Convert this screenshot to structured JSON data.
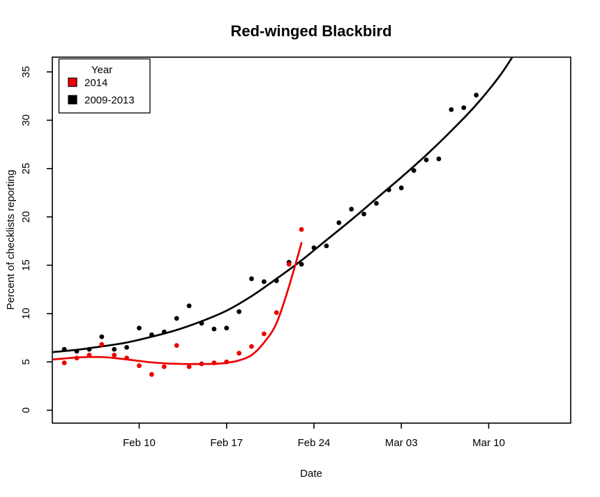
{
  "title": "Red-winged Blackbird",
  "axes": {
    "xlabel": "Date",
    "ylabel": "Percent of checklists reporting",
    "x_ticks": [
      {
        "label": "Feb 10",
        "day": 10
      },
      {
        "label": "Feb 17",
        "day": 17
      },
      {
        "label": "Feb 24",
        "day": 24
      },
      {
        "label": "Mar 03",
        "day": 31
      },
      {
        "label": "Mar 10",
        "day": 38
      }
    ],
    "y_ticks": [
      {
        "label": "0",
        "value": 0
      },
      {
        "label": "5",
        "value": 5
      },
      {
        "label": "10",
        "value": 10
      },
      {
        "label": "15",
        "value": 15
      },
      {
        "label": "20",
        "value": 20
      },
      {
        "label": "25",
        "value": 25
      },
      {
        "label": "30",
        "value": 30
      },
      {
        "label": "35",
        "value": 35
      }
    ]
  },
  "legend": {
    "title": "Year",
    "entries": [
      {
        "label": "2014",
        "color": "#ee0000"
      },
      {
        "label": "2009-2013",
        "color": "#000000"
      }
    ]
  },
  "chart_data": {
    "type": "scatter",
    "title": "Red-winged Blackbird",
    "xlabel": "Date",
    "ylabel": "Percent of checklists reporting",
    "x_axis_note": "x = day index, Feb 1 = 1, Mar 1 = 29; daily observations",
    "xlim_days": [
      3,
      34.6
    ],
    "ylim": [
      -1.3,
      36.5
    ],
    "grid": false,
    "legend_position": "top-left",
    "x_tick_labels": [
      "Feb 10",
      "Feb 17",
      "Feb 24",
      "Mar 03",
      "Mar 10"
    ],
    "y_tick_values": [
      0,
      5,
      10,
      15,
      20,
      25,
      30,
      35
    ],
    "series": [
      {
        "name": "2009-2013",
        "color": "#000000",
        "points": {
          "x": [
            4,
            5,
            6,
            7,
            8,
            9,
            10,
            11,
            12,
            13,
            14,
            15,
            16,
            17,
            18,
            19,
            20,
            21,
            22,
            23,
            24,
            25,
            26,
            27,
            28,
            29,
            30,
            31,
            32,
            33,
            34,
            35,
            36,
            37
          ],
          "dates": [
            "Feb 04",
            "Feb 05",
            "Feb 06",
            "Feb 07",
            "Feb 08",
            "Feb 09",
            "Feb 10",
            "Feb 11",
            "Feb 12",
            "Feb 13",
            "Feb 14",
            "Feb 15",
            "Feb 16",
            "Feb 17",
            "Feb 18",
            "Feb 19",
            "Feb 20",
            "Feb 21",
            "Feb 22",
            "Feb 23",
            "Feb 24",
            "Feb 25",
            "Feb 26",
            "Feb 27",
            "Feb 28",
            "Mar 01",
            "Mar 02",
            "Mar 03",
            "Mar 04",
            "Mar 05",
            "Mar 06",
            "Mar 07",
            "Mar 08",
            "Mar 09"
          ],
          "y": [
            6.3,
            6.1,
            6.3,
            7.6,
            6.3,
            6.5,
            8.5,
            7.8,
            8.1,
            9.5,
            10.8,
            9.0,
            8.4,
            8.5,
            10.2,
            13.6,
            13.3,
            13.4,
            15.3,
            15.1,
            16.8,
            17.0,
            19.4,
            20.8,
            20.3,
            21.4,
            22.8,
            23.0,
            24.8,
            25.9,
            26.0,
            31.1,
            31.3,
            32.6
          ]
        },
        "fit": {
          "x": [
            3,
            5,
            7,
            9,
            11,
            13,
            15,
            17,
            19,
            21,
            23,
            25,
            27,
            29,
            31,
            33,
            35,
            37,
            39,
            40.5
          ],
          "y": [
            6.0,
            6.25,
            6.6,
            7.0,
            7.6,
            8.3,
            9.2,
            10.3,
            11.8,
            13.6,
            15.5,
            17.6,
            19.7,
            21.9,
            24.1,
            26.4,
            28.9,
            31.6,
            34.8,
            37.8
          ]
        }
      },
      {
        "name": "2014",
        "color": "#ee0000",
        "points": {
          "x": [
            4,
            5,
            6,
            7,
            8,
            9,
            10,
            11,
            12,
            13,
            14,
            15,
            16,
            17,
            18,
            19,
            20,
            21,
            22,
            23
          ],
          "dates": [
            "Feb 04",
            "Feb 05",
            "Feb 06",
            "Feb 07",
            "Feb 08",
            "Feb 09",
            "Feb 10",
            "Feb 11",
            "Feb 12",
            "Feb 13",
            "Feb 14",
            "Feb 15",
            "Feb 16",
            "Feb 17",
            "Feb 18",
            "Feb 19",
            "Feb 20",
            "Feb 21",
            "Feb 22",
            "Feb 23"
          ],
          "y": [
            4.9,
            5.4,
            5.7,
            6.8,
            5.7,
            5.4,
            4.6,
            3.7,
            4.5,
            6.7,
            4.5,
            4.8,
            4.9,
            5.0,
            5.9,
            6.6,
            7.9,
            10.1,
            15.1,
            18.7
          ]
        },
        "fit": {
          "x": [
            3,
            4,
            5,
            6,
            7,
            8,
            9,
            10,
            11,
            12,
            13,
            14,
            15,
            16,
            17,
            18,
            19,
            20,
            21,
            22,
            23
          ],
          "y": [
            5.25,
            5.35,
            5.45,
            5.5,
            5.5,
            5.4,
            5.25,
            5.1,
            4.95,
            4.85,
            4.8,
            4.78,
            4.78,
            4.8,
            4.9,
            5.15,
            5.7,
            7.0,
            9.0,
            12.8,
            17.3
          ]
        }
      }
    ]
  }
}
